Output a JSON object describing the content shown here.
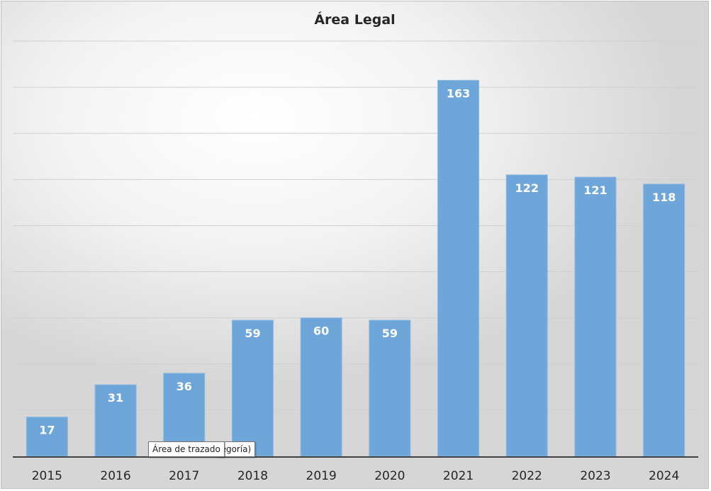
{
  "chart_data": {
    "type": "bar",
    "title": "Área Legal",
    "categories": [
      "2015",
      "2016",
      "2017",
      "2018",
      "2019",
      "2020",
      "2021",
      "2022",
      "2023",
      "2024"
    ],
    "values": [
      17,
      31,
      36,
      59,
      60,
      59,
      163,
      122,
      121,
      118
    ],
    "xlabel": "",
    "ylabel": "",
    "ylim": [
      0,
      180
    ],
    "grid": true,
    "legend": "none",
    "bar_color": "#6fa6d9",
    "label_color": "#ffffff"
  },
  "tooltip": {
    "primary": "Área de trazado",
    "secondary": "tegoría)"
  }
}
